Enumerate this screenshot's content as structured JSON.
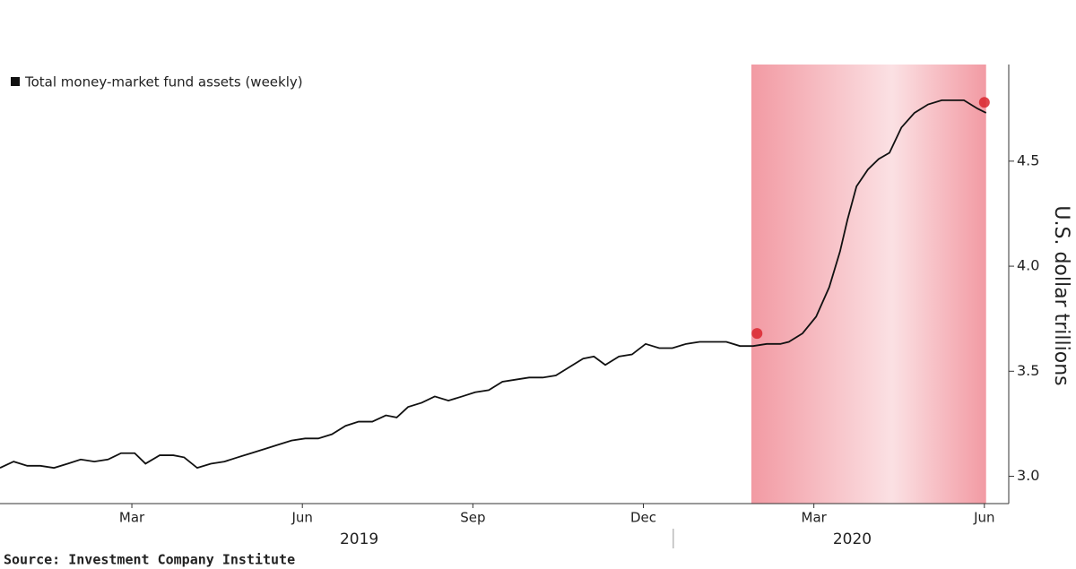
{
  "chart_data": {
    "type": "line",
    "legend_label": "Total money-market fund assets (weekly)",
    "y_axis_label": "U.S. dollar trillions",
    "source": "Source: Investment Company Institute",
    "series": [
      {
        "name": "Total money-market fund assets (weekly)",
        "color": "#111111",
        "x": [
          -0.32,
          -0.08,
          0.16,
          0.39,
          0.63,
          0.87,
          1.1,
          1.34,
          1.58,
          1.81,
          2.05,
          2.24,
          2.49,
          2.73,
          2.92,
          3.15,
          3.39,
          3.63,
          3.86,
          4.1,
          4.34,
          4.57,
          4.81,
          5.05,
          5.28,
          5.52,
          5.76,
          5.99,
          6.23,
          6.47,
          6.66,
          6.86,
          7.1,
          7.33,
          7.57,
          7.81,
          8.04,
          8.28,
          8.52,
          8.75,
          8.99,
          9.23,
          9.46,
          9.7,
          9.94,
          10.13,
          10.33,
          10.57,
          10.8,
          11.04,
          11.28,
          11.51,
          11.75,
          11.99,
          12.22,
          12.46,
          12.7,
          12.93,
          13.17,
          13.41,
          13.56,
          13.8,
          14.04,
          14.27,
          14.46,
          14.59,
          14.75,
          14.95,
          15.14,
          15.33,
          15.54,
          15.77,
          16.01,
          16.25,
          16.48,
          16.64,
          16.88,
          17.03
        ],
        "values": [
          3.04,
          3.07,
          3.05,
          3.05,
          3.04,
          3.06,
          3.08,
          3.07,
          3.08,
          3.11,
          3.11,
          3.06,
          3.1,
          3.1,
          3.09,
          3.04,
          3.06,
          3.07,
          3.09,
          3.11,
          3.13,
          3.15,
          3.17,
          3.18,
          3.18,
          3.2,
          3.24,
          3.26,
          3.26,
          3.29,
          3.28,
          3.33,
          3.35,
          3.38,
          3.36,
          3.38,
          3.4,
          3.41,
          3.45,
          3.46,
          3.47,
          3.47,
          3.48,
          3.52,
          3.56,
          3.57,
          3.53,
          3.57,
          3.58,
          3.63,
          3.61,
          3.61,
          3.63,
          3.64,
          3.64,
          3.64,
          3.62,
          3.62,
          3.63,
          3.63,
          3.64,
          3.68,
          3.76,
          3.9,
          4.07,
          4.22,
          4.38,
          4.46,
          4.51,
          4.54,
          4.66,
          4.73,
          4.77,
          4.79,
          4.79,
          4.79,
          4.75,
          4.73
        ]
      }
    ],
    "highlight_points": {
      "color": "#d9262e",
      "x": [
        13.0,
        17.0
      ],
      "values": [
        3.68,
        4.78
      ]
    },
    "shade": {
      "range": [
        12.9,
        17.03
      ],
      "color": "#f29aa3"
    },
    "xlim": [
      -0.32,
      17.35
    ],
    "xticks": [
      {
        "value": 2,
        "label": "Mar"
      },
      {
        "value": 5,
        "label": "Jun"
      },
      {
        "value": 8,
        "label": "Sep"
      },
      {
        "value": 11,
        "label": "Dec"
      },
      {
        "value": 14,
        "label": "Mar"
      },
      {
        "value": 17,
        "label": "Jun"
      }
    ],
    "years": [
      {
        "value": 0,
        "label": "2019"
      },
      {
        "value": 12,
        "label": "2020"
      }
    ],
    "ylim": [
      2.87,
      4.96
    ],
    "yticks": [
      {
        "value": 3,
        "label": "3.0"
      },
      3.5,
      {
        "value": 4,
        "label": "4.0"
      },
      4.5
    ],
    "grid": false
  }
}
